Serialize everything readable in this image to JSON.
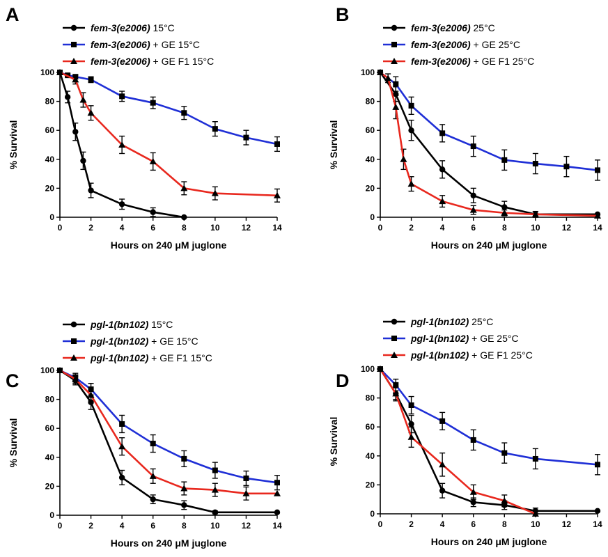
{
  "chart_data": [
    {
      "panel": "A",
      "type": "line",
      "xlabel": "Hours on 240 μM juglone",
      "ylabel": "% Survival",
      "xlim": [
        0,
        14
      ],
      "ylim": [
        0,
        100
      ],
      "xticks": [
        0,
        2,
        4,
        6,
        8,
        10,
        12,
        14
      ],
      "yticks": [
        0,
        20,
        40,
        60,
        80,
        100
      ],
      "legend_position": "top",
      "series": [
        {
          "strain": "fem-3(e2006)",
          "condition": " 15°C",
          "color": "#000000",
          "marker": "circle",
          "x": [
            0,
            0.5,
            1,
            1.5,
            2,
            4,
            6,
            8
          ],
          "y": [
            100,
            83,
            59,
            39,
            18.5,
            9,
            3.5,
            0
          ],
          "err": [
            0,
            4,
            6,
            6,
            5,
            3.5,
            3,
            0
          ]
        },
        {
          "strain": "fem-3(e2006)",
          "condition": " + GE 15°C",
          "color": "#1f2fd6",
          "marker": "square",
          "x": [
            0,
            0.5,
            1,
            2,
            4,
            6,
            8,
            10,
            12,
            14
          ],
          "y": [
            100,
            98,
            97,
            95,
            83.5,
            79,
            72,
            61,
            55,
            50.5
          ],
          "err": [
            0,
            1,
            1.5,
            2,
            3.5,
            4,
            4.5,
            5,
            5,
            5
          ]
        },
        {
          "strain": "fem-3(e2006)",
          "condition": " + GE F1 15°C",
          "color": "#e8281e",
          "marker": "triangle",
          "x": [
            0,
            1,
            1.5,
            2,
            4,
            6,
            8,
            10,
            14
          ],
          "y": [
            100,
            95,
            81,
            72,
            50,
            38.5,
            20,
            16.5,
            15
          ],
          "err": [
            0,
            3,
            5,
            5,
            6,
            6,
            4.5,
            4.5,
            4.5
          ]
        }
      ]
    },
    {
      "panel": "B",
      "type": "line",
      "xlabel": "Hours on 240 μM juglone",
      "ylabel": "% Survival",
      "xlim": [
        0,
        14
      ],
      "ylim": [
        0,
        100
      ],
      "xticks": [
        0,
        2,
        4,
        6,
        8,
        10,
        12,
        14
      ],
      "yticks": [
        0,
        20,
        40,
        60,
        80,
        100
      ],
      "legend_position": "top",
      "series": [
        {
          "strain": "fem-3(e2006)",
          "condition": " 25°C",
          "color": "#000000",
          "marker": "circle",
          "x": [
            0,
            1,
            2,
            4,
            6,
            8,
            10,
            14
          ],
          "y": [
            100,
            85,
            60,
            33,
            15,
            7,
            2,
            2
          ],
          "err": [
            0,
            5,
            7,
            6,
            5,
            4,
            2,
            0
          ]
        },
        {
          "strain": "fem-3(e2006)",
          "condition": " + GE 25°C",
          "color": "#1f2fd6",
          "marker": "square",
          "x": [
            0,
            1,
            2,
            4,
            6,
            8,
            10,
            12,
            14
          ],
          "y": [
            100,
            92,
            77,
            58,
            49,
            39.5,
            37,
            35,
            32.5
          ],
          "err": [
            0,
            5,
            6,
            6,
            7,
            7,
            7,
            7,
            7
          ]
        },
        {
          "strain": "fem-3(e2006)",
          "condition": " + GE F1 25°C",
          "color": "#e8281e",
          "marker": "triangle",
          "x": [
            0,
            0.5,
            1,
            1.5,
            2,
            4,
            6,
            8,
            10,
            14
          ],
          "y": [
            100,
            96,
            76,
            40,
            23,
            11,
            5,
            3,
            2,
            1
          ],
          "err": [
            0,
            3,
            8,
            7,
            5,
            4,
            3,
            2,
            2,
            0
          ]
        }
      ]
    },
    {
      "panel": "C",
      "type": "line",
      "xlabel": "Hours on 240 μM juglone",
      "ylabel": "% Survival",
      "xlim": [
        0,
        14
      ],
      "ylim": [
        0,
        100
      ],
      "xticks": [
        0,
        2,
        4,
        6,
        8,
        10,
        12,
        14
      ],
      "yticks": [
        0,
        20,
        40,
        60,
        80,
        100
      ],
      "legend_position": "top",
      "series": [
        {
          "strain": "pgl-1(bn102)",
          "condition": " 15°C",
          "color": "#000000",
          "marker": "circle",
          "x": [
            0,
            1,
            2,
            4,
            6,
            8,
            10,
            14
          ],
          "y": [
            100,
            93,
            78,
            26,
            11,
            7,
            2,
            2
          ],
          "err": [
            0,
            3,
            5,
            5,
            3,
            3,
            1,
            0
          ]
        },
        {
          "strain": "pgl-1(bn102)",
          "condition": " + GE 15°C",
          "color": "#1f2fd6",
          "marker": "square",
          "x": [
            0,
            1,
            2,
            4,
            6,
            8,
            10,
            12,
            14
          ],
          "y": [
            100,
            95,
            87,
            63,
            49.5,
            39,
            31,
            25.5,
            22.5
          ],
          "err": [
            0,
            3,
            4,
            6,
            6,
            5.5,
            5.5,
            5,
            5
          ]
        },
        {
          "strain": "pgl-1(bn102)",
          "condition": " + GE F1 15°C",
          "color": "#e8281e",
          "marker": "triangle",
          "x": [
            0,
            1,
            2,
            4,
            6,
            8,
            10,
            12,
            14
          ],
          "y": [
            100,
            94,
            83,
            47.5,
            27,
            18.5,
            17.5,
            15,
            15
          ],
          "err": [
            0,
            3,
            4,
            6,
            5,
            4.5,
            4.5,
            4.5,
            0
          ]
        }
      ]
    },
    {
      "panel": "D",
      "type": "line",
      "xlabel": "Hours on 240 μM juglone",
      "ylabel": "% Survival",
      "xlim": [
        0,
        14
      ],
      "ylim": [
        0,
        100
      ],
      "xticks": [
        0,
        2,
        4,
        6,
        8,
        10,
        12,
        14
      ],
      "yticks": [
        0,
        20,
        40,
        60,
        80,
        100
      ],
      "legend_position": "top",
      "series": [
        {
          "strain": "pgl-1(bn102)",
          "condition": " 25°C",
          "color": "#000000",
          "marker": "circle",
          "x": [
            0,
            1,
            2,
            4,
            6,
            8,
            10,
            14
          ],
          "y": [
            100,
            83,
            62,
            16,
            8,
            6,
            2,
            2
          ],
          "err": [
            0,
            4,
            6,
            5,
            3,
            3,
            2,
            0
          ]
        },
        {
          "strain": "pgl-1(bn102)",
          "condition": " + GE 25°C",
          "color": "#1f2fd6",
          "marker": "square",
          "x": [
            0,
            1,
            2,
            4,
            6,
            8,
            10,
            14
          ],
          "y": [
            100,
            89,
            75,
            64,
            51,
            42,
            38,
            34
          ],
          "err": [
            0,
            4,
            6,
            6,
            7,
            7,
            7,
            7
          ]
        },
        {
          "strain": "pgl-1(bn102)",
          "condition": " + GE F1 25°C",
          "color": "#e8281e",
          "marker": "triangle",
          "x": [
            0,
            1,
            2,
            4,
            6,
            8,
            10
          ],
          "y": [
            100,
            83,
            53,
            34,
            15,
            9,
            0
          ],
          "err": [
            0,
            5,
            7,
            8,
            5,
            4,
            2
          ]
        }
      ]
    }
  ]
}
